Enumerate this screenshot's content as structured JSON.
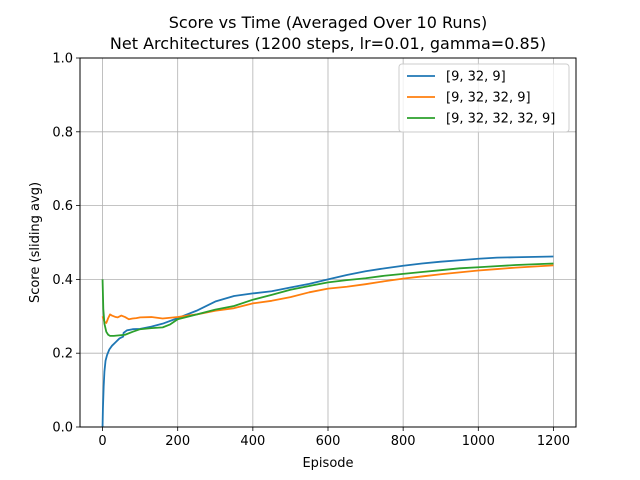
{
  "chart_data": {
    "type": "line",
    "title_line1": "Score vs Time (Averaged Over 10 Runs)",
    "title_line2": "Net Architectures (1200 steps, lr=0.01, gamma=0.85)",
    "xlabel": "Episode",
    "ylabel": "Score (sliding avg)",
    "xlim": [
      -60,
      1260
    ],
    "ylim": [
      0.0,
      1.0
    ],
    "xticks": [
      0,
      200,
      400,
      600,
      800,
      1000,
      1200
    ],
    "yticks": [
      0.0,
      0.2,
      0.4,
      0.6,
      0.8,
      1.0
    ],
    "xtick_labels": [
      "0",
      "200",
      "400",
      "600",
      "800",
      "1000",
      "1200"
    ],
    "ytick_labels": [
      "0.0",
      "0.2",
      "0.4",
      "0.6",
      "0.8",
      "1.0"
    ],
    "grid": true,
    "legend_position": "top-right",
    "series": [
      {
        "name": "[9, 32, 9]",
        "color": "#1f77b4",
        "x": [
          0,
          1,
          3,
          5,
          8,
          12,
          18,
          25,
          35,
          45,
          55,
          56,
          65,
          80,
          100,
          130,
          160,
          200,
          250,
          300,
          350,
          400,
          450,
          500,
          550,
          600,
          650,
          700,
          750,
          800,
          850,
          900,
          950,
          1000,
          1050,
          1100,
          1150,
          1200
        ],
        "values": [
          0.0,
          0.05,
          0.11,
          0.15,
          0.18,
          0.195,
          0.21,
          0.22,
          0.23,
          0.24,
          0.245,
          0.255,
          0.262,
          0.265,
          0.266,
          0.272,
          0.28,
          0.295,
          0.315,
          0.34,
          0.355,
          0.362,
          0.368,
          0.378,
          0.388,
          0.4,
          0.412,
          0.422,
          0.43,
          0.437,
          0.443,
          0.448,
          0.452,
          0.456,
          0.459,
          0.46,
          0.461,
          0.462
        ]
      },
      {
        "name": "[9, 32, 32, 9]",
        "color": "#ff7f0e",
        "x": [
          0,
          5,
          10,
          15,
          20,
          25,
          30,
          35,
          40,
          50,
          60,
          70,
          80,
          90,
          100,
          130,
          160,
          200,
          250,
          300,
          350,
          400,
          450,
          500,
          550,
          600,
          650,
          700,
          750,
          800,
          850,
          900,
          950,
          1000,
          1050,
          1100,
          1150,
          1200
        ],
        "values": [
          0.3,
          0.285,
          0.282,
          0.295,
          0.305,
          0.302,
          0.3,
          0.298,
          0.297,
          0.302,
          0.298,
          0.292,
          0.294,
          0.295,
          0.297,
          0.298,
          0.294,
          0.298,
          0.305,
          0.315,
          0.322,
          0.335,
          0.342,
          0.352,
          0.365,
          0.375,
          0.38,
          0.387,
          0.395,
          0.402,
          0.408,
          0.414,
          0.419,
          0.424,
          0.428,
          0.432,
          0.435,
          0.438
        ]
      },
      {
        "name": "[9, 32, 32, 32, 9]",
        "color": "#2ca02c",
        "x": [
          0,
          2,
          5,
          10,
          15,
          20,
          30,
          40,
          50,
          60,
          80,
          100,
          130,
          160,
          180,
          200,
          250,
          300,
          350,
          400,
          450,
          500,
          550,
          600,
          650,
          700,
          750,
          800,
          850,
          900,
          950,
          1000,
          1050,
          1100,
          1150,
          1200
        ],
        "values": [
          0.4,
          0.32,
          0.28,
          0.258,
          0.25,
          0.247,
          0.247,
          0.248,
          0.249,
          0.25,
          0.258,
          0.265,
          0.268,
          0.27,
          0.278,
          0.292,
          0.305,
          0.318,
          0.328,
          0.345,
          0.358,
          0.372,
          0.382,
          0.392,
          0.398,
          0.403,
          0.41,
          0.415,
          0.42,
          0.425,
          0.43,
          0.433,
          0.436,
          0.439,
          0.441,
          0.443
        ]
      }
    ]
  }
}
